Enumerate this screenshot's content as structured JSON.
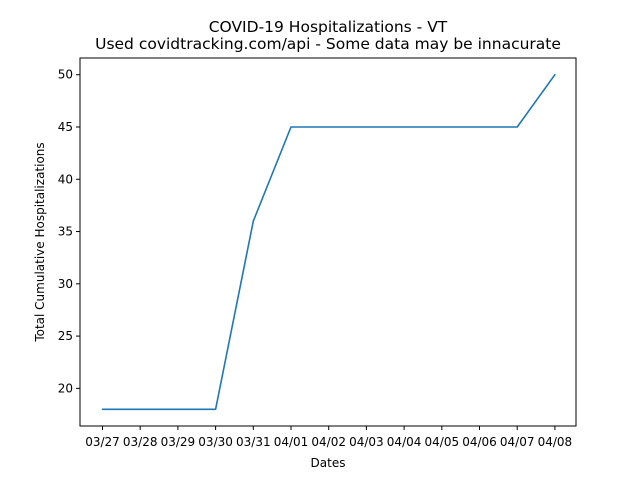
{
  "chart_data": {
    "type": "line",
    "title": "COVID-19 Hospitalizations - VT",
    "subtitle": "Used covidtracking.com/api - Some data may be innacurate",
    "xlabel": "Dates",
    "ylabel": "Total Cumulative Hospitalizations",
    "categories": [
      "03/27",
      "03/28",
      "03/29",
      "03/30",
      "03/31",
      "04/01",
      "04/02",
      "04/03",
      "04/04",
      "04/05",
      "04/06",
      "04/07",
      "04/08"
    ],
    "series": [
      {
        "values": [
          18,
          18,
          18,
          18,
          36,
          45,
          45,
          45,
          45,
          45,
          45,
          45,
          50
        ]
      }
    ],
    "yticks": [
      20,
      25,
      30,
      35,
      40,
      45,
      50
    ],
    "ylim": [
      16.4,
      51.6
    ],
    "grid": false,
    "line_color": "#1f77b4"
  }
}
